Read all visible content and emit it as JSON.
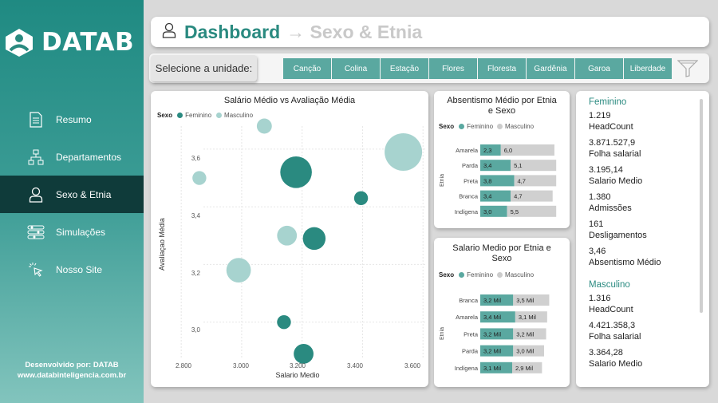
{
  "brand": {
    "name": "DATAB"
  },
  "nav": [
    {
      "label": "Resumo",
      "icon": "document-icon"
    },
    {
      "label": "Departamentos",
      "icon": "org-chart-icon"
    },
    {
      "label": "Sexo & Etnia",
      "icon": "person-icon",
      "active": true
    },
    {
      "label": "Simulações",
      "icon": "sliders-icon"
    },
    {
      "label": "Nosso Site",
      "icon": "cursor-click-icon"
    }
  ],
  "footer": {
    "line1": "Desenvolvido por: DATAB",
    "line2": "www.databinteligencia.com.br"
  },
  "header": {
    "title": "Dashboard",
    "subtitle": "→ Sexo & Etnia"
  },
  "unit_selector": {
    "label": "Selecione a unidade:",
    "units": [
      "Canção",
      "Colina",
      "Estação",
      "Flores",
      "Floresta",
      "Gardênia",
      "Garoa",
      "Liberdade"
    ]
  },
  "colors": {
    "feminino": "#2a8a80",
    "masculino": "#a7d3cf",
    "accent": "#2a8a80"
  },
  "scatter": {
    "title": "Salário Médio vs Avaliação Média",
    "legend_title": "Sexo",
    "legend": [
      "Feminino",
      "Masculino"
    ],
    "xlabel": "Salario Medio",
    "ylabel": "Avaliaçao Média",
    "xticks": [
      "2.800",
      "3.000",
      "3.200",
      "3.400",
      "3.600"
    ],
    "yticks": [
      "3,6",
      "3,4",
      "3,2",
      "3,0"
    ]
  },
  "absent": {
    "title_line1": "Absentismo Médio por Etnia",
    "title_line2": "e Sexo",
    "legend_title": "Sexo",
    "legend": [
      "Feminino",
      "Masculino"
    ],
    "axis_label": "Etnia",
    "rows": [
      {
        "cat": "Amarela",
        "f": "2,3",
        "m": "6,0"
      },
      {
        "cat": "Parda",
        "f": "3,4",
        "m": "5,1"
      },
      {
        "cat": "Preta",
        "f": "3,8",
        "m": "4,7"
      },
      {
        "cat": "Branca",
        "f": "3,4",
        "m": "4,7"
      },
      {
        "cat": "Indígena",
        "f": "3,0",
        "m": "5,5"
      }
    ]
  },
  "salary": {
    "title_line1": "Salario Medio por Etnia e",
    "title_line2": "Sexo",
    "legend_title": "Sexo",
    "legend": [
      "Feminino",
      "Masculino"
    ],
    "axis_label": "Etnia",
    "rows": [
      {
        "cat": "Branca",
        "f": "3,2 Mil",
        "m": "3,5 Mil"
      },
      {
        "cat": "Amarela",
        "f": "3,4 Mil",
        "m": "3,1 Mil"
      },
      {
        "cat": "Preta",
        "f": "3,2 Mil",
        "m": "3,2 Mil"
      },
      {
        "cat": "Parda",
        "f": "3,2 Mil",
        "m": "3,0 Mil"
      },
      {
        "cat": "Indígena",
        "f": "3,1 Mil",
        "m": "2,9 Mil"
      }
    ]
  },
  "stats": {
    "feminino": {
      "head": "Feminino",
      "items": [
        {
          "value": "1.219",
          "label": "HeadCount"
        },
        {
          "value": "3.871.527,9",
          "label": "Folha salarial"
        },
        {
          "value": "3.195,14",
          "label": "Salario Medio"
        },
        {
          "value": "1.380",
          "label": "Admissões"
        },
        {
          "value": "161",
          "label": "Desligamentos"
        },
        {
          "value": "3,46",
          "label": "Absentismo Médio"
        }
      ]
    },
    "masculino": {
      "head": "Masculino",
      "items": [
        {
          "value": "1.316",
          "label": "HeadCount"
        },
        {
          "value": "4.421.358,3",
          "label": "Folha salarial"
        },
        {
          "value": "3.364,28",
          "label": "Salario Medio"
        }
      ]
    }
  },
  "chart_data": [
    {
      "type": "scatter",
      "title": "Salário Médio vs Avaliação Média",
      "xlabel": "Salario Medio",
      "ylabel": "Avaliaçao Média",
      "xlim": [
        2760,
        3610
      ],
      "ylim": [
        2.88,
        3.68
      ],
      "series": [
        {
          "name": "Feminino",
          "points": [
            {
              "x": 3180,
              "y": 3.52,
              "size": 4
            },
            {
              "x": 3240,
              "y": 3.29,
              "size": 2.5
            },
            {
              "x": 3395,
              "y": 3.43,
              "size": 1
            },
            {
              "x": 3140,
              "y": 3.0,
              "size": 1
            },
            {
              "x": 3205,
              "y": 2.89,
              "size": 2
            }
          ]
        },
        {
          "name": "Masculino",
          "points": [
            {
              "x": 3535,
              "y": 3.59,
              "size": 5
            },
            {
              "x": 2860,
              "y": 3.5,
              "size": 1
            },
            {
              "x": 3150,
              "y": 3.3,
              "size": 2
            },
            {
              "x": 2990,
              "y": 3.18,
              "size": 2.8
            },
            {
              "x": 3075,
              "y": 3.71,
              "size": 1.2
            }
          ]
        }
      ]
    },
    {
      "type": "bar",
      "title": "Absentismo Médio por Etnia e Sexo",
      "stacked": true,
      "orientation": "horizontal",
      "categories": [
        "Amarela",
        "Parda",
        "Preta",
        "Branca",
        "Indígena"
      ],
      "series": [
        {
          "name": "Feminino",
          "values": [
            2.3,
            3.4,
            3.8,
            3.4,
            3.0
          ]
        },
        {
          "name": "Masculino",
          "values": [
            6.0,
            5.1,
            4.7,
            4.7,
            5.5
          ]
        }
      ]
    },
    {
      "type": "bar",
      "title": "Salario Medio por Etnia e Sexo",
      "stacked": true,
      "orientation": "horizontal",
      "categories": [
        "Branca",
        "Amarela",
        "Preta",
        "Parda",
        "Indígena"
      ],
      "series": [
        {
          "name": "Feminino",
          "values": [
            3200,
            3400,
            3200,
            3200,
            3100
          ]
        },
        {
          "name": "Masculino",
          "values": [
            3500,
            3100,
            3200,
            3000,
            2900
          ]
        }
      ]
    }
  ]
}
